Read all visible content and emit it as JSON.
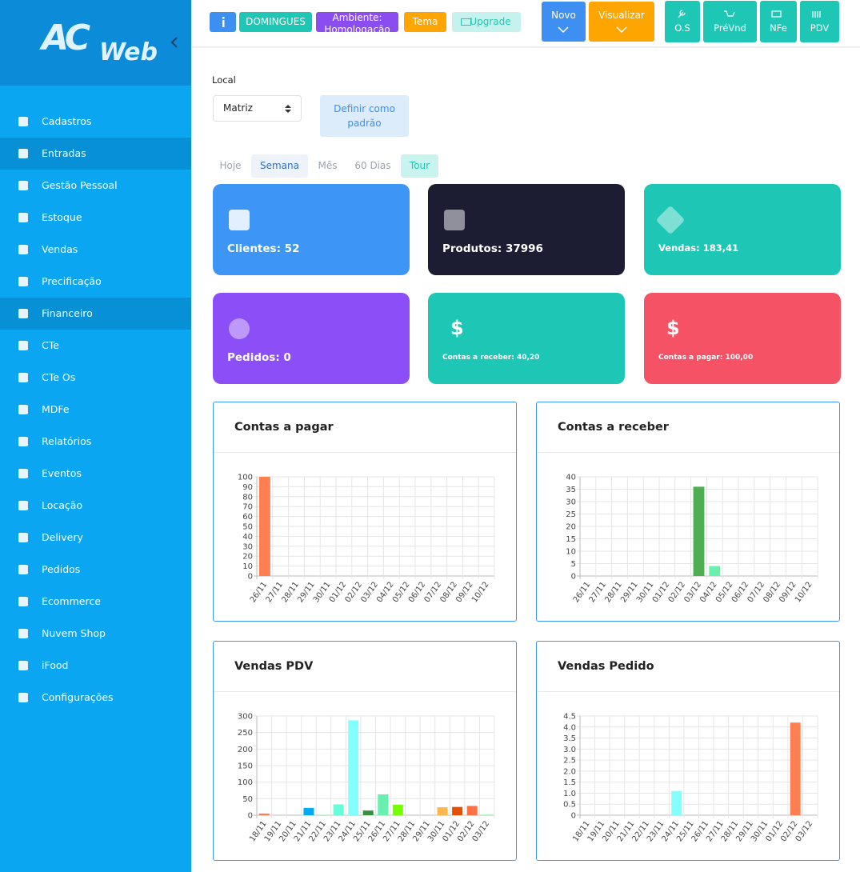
{
  "logo": {
    "mark": "AC",
    "text": "Web"
  },
  "sidebar": {
    "menu": [
      {
        "label": "Cadastros"
      },
      {
        "label": "Entradas",
        "active": true
      },
      {
        "label": "Gestão Pessoal"
      },
      {
        "label": "Estoque"
      },
      {
        "label": "Vendas"
      },
      {
        "label": "Precificação"
      },
      {
        "label": "Financeiro",
        "active": true
      },
      {
        "label": "CTe"
      },
      {
        "label": "CTe Os"
      },
      {
        "label": "MDFe"
      },
      {
        "label": "Relatórios"
      },
      {
        "label": "Eventos"
      },
      {
        "label": "Locação"
      },
      {
        "label": "Delivery"
      },
      {
        "label": "Pedidos"
      },
      {
        "label": "Ecommerce"
      },
      {
        "label": "Nuvem Shop"
      },
      {
        "label": "iFood"
      },
      {
        "label": "Configurações"
      }
    ]
  },
  "topbar": {
    "badges": [
      "DOMINGUES",
      "Ambiente: Homologação",
      "Tema",
      "Upgrade"
    ],
    "actions": [
      "Novo",
      "Visualizar"
    ],
    "shortcuts": [
      "O.S",
      "PréVnd",
      "NFe",
      "PDV"
    ]
  },
  "filters": {
    "local_label": "Local",
    "local_value": "Matriz",
    "default_button": "Definir como padrão",
    "periods": [
      "Hoje",
      "Semana",
      "Mês",
      "60 Dias",
      "Tour"
    ]
  },
  "cards": [
    "Clientes: 52",
    "Produtos: 37996",
    "Vendas: 183,41",
    "Pedidos: 0",
    "Contas a receber: 40,20",
    "Contas a pagar: 100,00"
  ],
  "chart_data": [
    {
      "type": "bar",
      "title": "Contas a pagar",
      "categories": [
        "26/11",
        "27/11",
        "28/11",
        "29/11",
        "30/11",
        "01/12",
        "02/12",
        "03/12",
        "04/12",
        "05/12",
        "06/12",
        "07/12",
        "08/12",
        "09/12",
        "10/12"
      ],
      "values": [
        100,
        0,
        0,
        0,
        0,
        0,
        0,
        0,
        0,
        0,
        0,
        0,
        0,
        0,
        0
      ],
      "colors": [
        "#ff7f50",
        null,
        null,
        null,
        null,
        null,
        null,
        null,
        null,
        null,
        null,
        null,
        null,
        null,
        null
      ],
      "ylim": [
        0,
        100
      ],
      "yticks": [
        0,
        10,
        20,
        30,
        40,
        50,
        60,
        70,
        80,
        90,
        100
      ],
      "grid": true
    },
    {
      "type": "bar",
      "title": "Contas a receber",
      "categories": [
        "26/11",
        "27/11",
        "28/11",
        "29/11",
        "30/11",
        "01/12",
        "02/12",
        "03/12",
        "04/12",
        "05/12",
        "06/12",
        "07/12",
        "08/12",
        "09/12",
        "10/12"
      ],
      "values": [
        0,
        0,
        0,
        0,
        0,
        0,
        0,
        36,
        4,
        0,
        0,
        0,
        0,
        0,
        0
      ],
      "colors": [
        null,
        null,
        null,
        null,
        null,
        null,
        null,
        "#4caf50",
        "#69f0ae",
        null,
        null,
        null,
        null,
        null,
        null
      ],
      "ylim": [
        0,
        40
      ],
      "yticks": [
        0,
        5,
        10,
        15,
        20,
        25,
        30,
        35,
        40
      ],
      "grid": true
    },
    {
      "type": "bar",
      "title": "Vendas PDV",
      "categories": [
        "18/11",
        "19/11",
        "20/11",
        "21/11",
        "22/11",
        "23/11",
        "24/11",
        "25/11",
        "26/11",
        "27/11",
        "28/11",
        "29/11",
        "30/11",
        "01/12",
        "02/12",
        "03/12"
      ],
      "values": [
        5,
        0,
        0,
        22,
        2,
        33,
        287,
        14,
        63,
        32,
        0,
        0,
        24,
        25,
        28,
        3
      ],
      "colors": [
        "#ff7f50",
        null,
        null,
        "#03a9f4",
        "#b9f6ca",
        "#64ffda",
        "#84ffff",
        "#388e3c",
        "#69f0ae",
        "#76ff03",
        null,
        null,
        "#ffb74d",
        "#e65100",
        "#ff7043",
        "#b9f6ca"
      ],
      "ylim": [
        0,
        300
      ],
      "yticks": [
        0,
        50,
        100,
        150,
        200,
        250,
        300
      ],
      "grid": true
    },
    {
      "type": "bar",
      "title": "Vendas Pedido",
      "categories": [
        "18/11",
        "19/11",
        "20/11",
        "21/11",
        "22/11",
        "23/11",
        "24/11",
        "25/11",
        "26/11",
        "27/11",
        "28/11",
        "29/11",
        "30/11",
        "01/12",
        "02/12",
        "03/12"
      ],
      "values": [
        0,
        0,
        0,
        0,
        0,
        0,
        1.1,
        0,
        0,
        0,
        0,
        0,
        0,
        0,
        4.2,
        0
      ],
      "colors": [
        null,
        null,
        null,
        null,
        null,
        null,
        "#84ffff",
        null,
        null,
        null,
        null,
        null,
        null,
        null,
        "#ff7f50",
        null
      ],
      "ylim": [
        0,
        4.5
      ],
      "yticks": [
        0,
        0.5,
        {
          "value": 1,
          "label": "1.0"
        },
        1.5,
        {
          "value": 2,
          "label": "2.0"
        },
        2.5,
        {
          "value": 3,
          "label": "3.0"
        },
        3.5,
        {
          "value": 4,
          "label": "4.0"
        },
        4.5
      ],
      "grid": true
    }
  ]
}
